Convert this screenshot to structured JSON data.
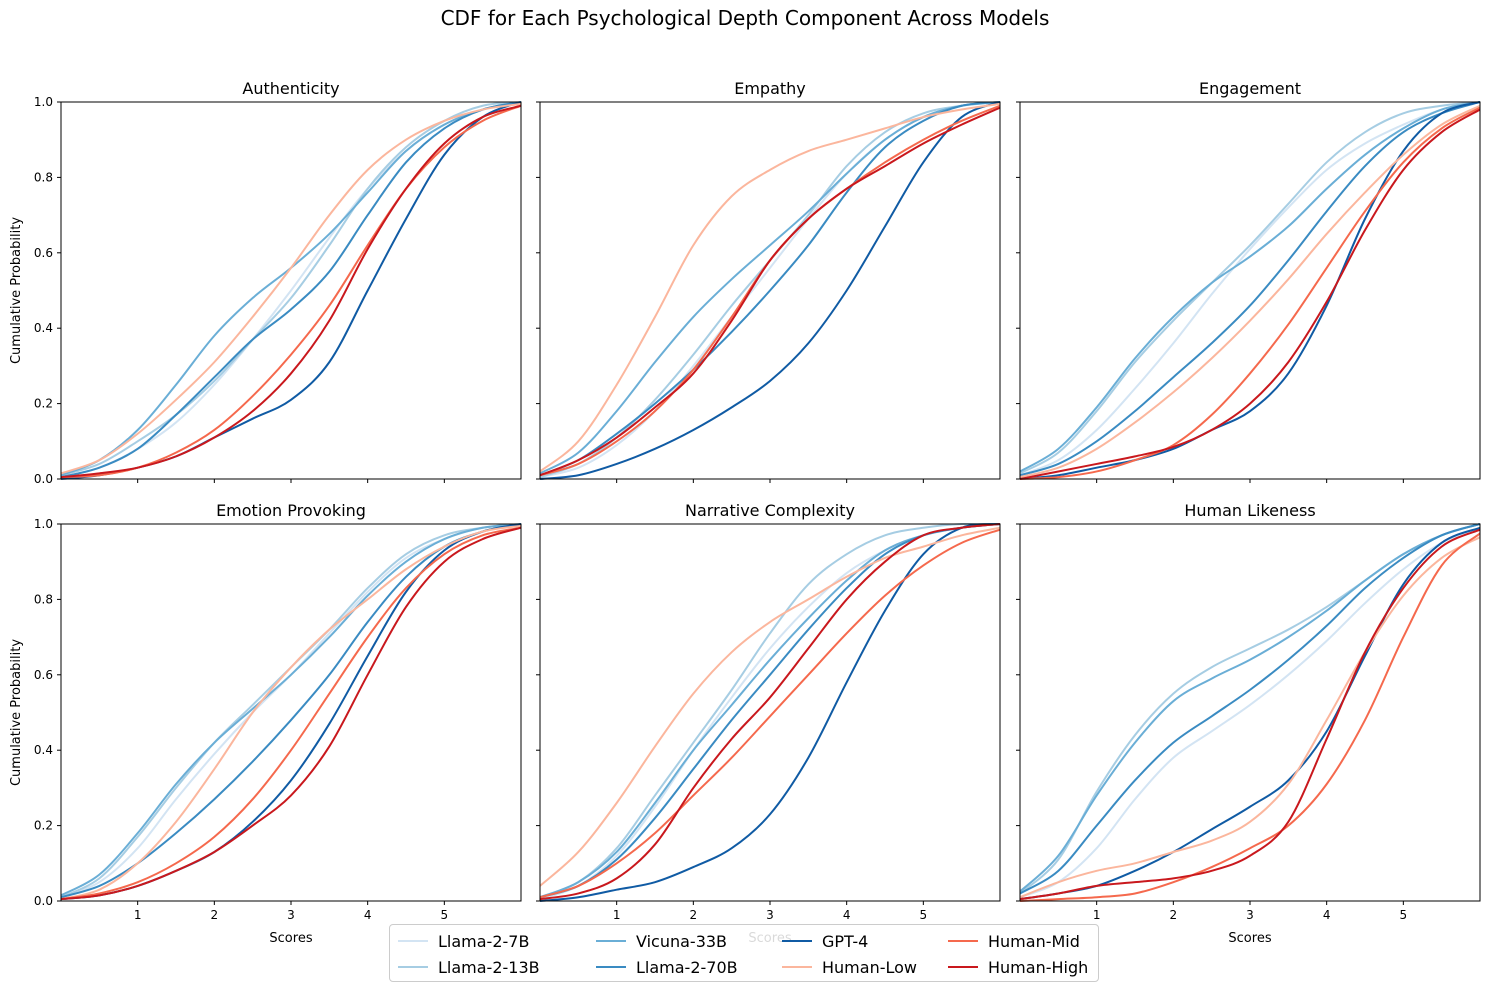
{
  "figure": {
    "title": "CDF for Each Psychological Depth Component Across Models"
  },
  "legend": [
    {
      "name": "Llama-2-7B",
      "color": "#d3e4f3"
    },
    {
      "name": "Llama-2-13B",
      "color": "#a6cde3"
    },
    {
      "name": "Vicuna-33B",
      "color": "#6aaed6"
    },
    {
      "name": "Llama-2-70B",
      "color": "#3a8bc2"
    },
    {
      "name": "GPT-4",
      "color": "#105ba4"
    },
    {
      "name": "Human-Low",
      "color": "#fbb69d"
    },
    {
      "name": "Human-Mid",
      "color": "#f5694d"
    },
    {
      "name": "Human-High",
      "color": "#c9181d"
    }
  ],
  "chart_data": [
    {
      "type": "line",
      "title": "Authenticity",
      "xlabel": "",
      "ylabel": "Cumulative Probability",
      "xlim": [
        0,
        6
      ],
      "ylim": [
        0,
        1
      ],
      "xticks": [
        1,
        2,
        3,
        4,
        5
      ],
      "yticks": [
        0.0,
        0.2,
        0.4,
        0.6,
        0.8,
        1.0
      ],
      "x": [
        0,
        0.5,
        1,
        1.5,
        2,
        2.5,
        3,
        3.5,
        4,
        4.5,
        5,
        5.5,
        6
      ],
      "series": [
        {
          "name": "Llama-2-7B",
          "values": [
            0.005,
            0.03,
            0.08,
            0.15,
            0.25,
            0.37,
            0.5,
            0.64,
            0.77,
            0.87,
            0.94,
            0.98,
            1.0
          ]
        },
        {
          "name": "Llama-2-13B",
          "values": [
            0.01,
            0.04,
            0.1,
            0.17,
            0.26,
            0.37,
            0.48,
            0.62,
            0.77,
            0.88,
            0.95,
            0.99,
            1.0
          ]
        },
        {
          "name": "Vicuna-33B",
          "values": [
            0.01,
            0.05,
            0.13,
            0.25,
            0.38,
            0.48,
            0.56,
            0.65,
            0.76,
            0.87,
            0.94,
            0.98,
            1.0
          ]
        },
        {
          "name": "Llama-2-70B",
          "values": [
            0.005,
            0.03,
            0.08,
            0.17,
            0.27,
            0.37,
            0.45,
            0.55,
            0.7,
            0.84,
            0.93,
            0.98,
            1.0
          ]
        },
        {
          "name": "GPT-4",
          "values": [
            0.0,
            0.01,
            0.03,
            0.06,
            0.11,
            0.16,
            0.21,
            0.31,
            0.5,
            0.69,
            0.86,
            0.96,
            1.0
          ]
        },
        {
          "name": "Human-Low",
          "values": [
            0.015,
            0.05,
            0.12,
            0.21,
            0.31,
            0.43,
            0.56,
            0.7,
            0.82,
            0.9,
            0.95,
            0.98,
            0.995
          ]
        },
        {
          "name": "Human-Mid",
          "values": [
            0.005,
            0.01,
            0.03,
            0.07,
            0.13,
            0.22,
            0.33,
            0.46,
            0.62,
            0.77,
            0.88,
            0.95,
            0.99
          ]
        },
        {
          "name": "Human-High",
          "values": [
            0.005,
            0.015,
            0.03,
            0.06,
            0.11,
            0.18,
            0.28,
            0.42,
            0.61,
            0.77,
            0.89,
            0.96,
            0.99
          ]
        }
      ]
    },
    {
      "type": "line",
      "title": "Empathy",
      "xlabel": "",
      "ylabel": "",
      "xlim": [
        0,
        6
      ],
      "ylim": [
        0,
        1
      ],
      "xticks": [
        1,
        2,
        3,
        4,
        5
      ],
      "yticks": [
        0.0,
        0.2,
        0.4,
        0.6,
        0.8,
        1.0
      ],
      "x": [
        0,
        0.5,
        1,
        1.5,
        2,
        2.5,
        3,
        3.5,
        4,
        4.5,
        5,
        5.5,
        6
      ],
      "series": [
        {
          "name": "Llama-2-7B",
          "values": [
            0.005,
            0.03,
            0.09,
            0.18,
            0.3,
            0.43,
            0.56,
            0.69,
            0.81,
            0.9,
            0.96,
            0.99,
            1.0
          ]
        },
        {
          "name": "Llama-2-13B",
          "values": [
            0.005,
            0.04,
            0.11,
            0.21,
            0.33,
            0.46,
            0.58,
            0.7,
            0.83,
            0.92,
            0.97,
            0.99,
            1.0
          ]
        },
        {
          "name": "Vicuna-33B",
          "values": [
            0.015,
            0.07,
            0.18,
            0.31,
            0.43,
            0.53,
            0.62,
            0.71,
            0.81,
            0.9,
            0.96,
            0.99,
            1.0
          ]
        },
        {
          "name": "Llama-2-70B",
          "values": [
            0.01,
            0.05,
            0.12,
            0.2,
            0.29,
            0.39,
            0.5,
            0.62,
            0.76,
            0.88,
            0.95,
            0.99,
            1.0
          ]
        },
        {
          "name": "GPT-4",
          "values": [
            0.0,
            0.01,
            0.04,
            0.08,
            0.13,
            0.19,
            0.26,
            0.36,
            0.5,
            0.67,
            0.84,
            0.96,
            1.0
          ]
        },
        {
          "name": "Human-Low",
          "values": [
            0.02,
            0.1,
            0.25,
            0.43,
            0.62,
            0.75,
            0.82,
            0.87,
            0.9,
            0.93,
            0.96,
            0.98,
            0.995
          ]
        },
        {
          "name": "Human-Mid",
          "values": [
            0.01,
            0.04,
            0.1,
            0.18,
            0.29,
            0.43,
            0.58,
            0.69,
            0.77,
            0.84,
            0.9,
            0.95,
            0.99
          ]
        },
        {
          "name": "Human-High",
          "values": [
            0.01,
            0.05,
            0.11,
            0.19,
            0.28,
            0.42,
            0.58,
            0.69,
            0.77,
            0.83,
            0.89,
            0.94,
            0.985
          ]
        }
      ]
    },
    {
      "type": "line",
      "title": "Engagement",
      "xlabel": "",
      "ylabel": "",
      "xlim": [
        0,
        6
      ],
      "ylim": [
        0,
        1
      ],
      "xticks": [
        1,
        2,
        3,
        4,
        5
      ],
      "yticks": [
        0.0,
        0.2,
        0.4,
        0.6,
        0.8,
        1.0
      ],
      "x": [
        0,
        0.5,
        1,
        1.5,
        2,
        2.5,
        3,
        3.5,
        4,
        4.5,
        5,
        5.5,
        6
      ],
      "series": [
        {
          "name": "Llama-2-7B",
          "values": [
            0.01,
            0.05,
            0.13,
            0.24,
            0.36,
            0.49,
            0.61,
            0.72,
            0.82,
            0.89,
            0.94,
            0.98,
            1.0
          ]
        },
        {
          "name": "Llama-2-13B",
          "values": [
            0.015,
            0.07,
            0.18,
            0.31,
            0.42,
            0.52,
            0.62,
            0.73,
            0.84,
            0.92,
            0.97,
            0.99,
            1.0
          ]
        },
        {
          "name": "Vicuna-33B",
          "values": [
            0.02,
            0.08,
            0.19,
            0.32,
            0.43,
            0.52,
            0.59,
            0.67,
            0.77,
            0.86,
            0.93,
            0.98,
            1.0
          ]
        },
        {
          "name": "Llama-2-70B",
          "values": [
            0.01,
            0.04,
            0.1,
            0.18,
            0.27,
            0.36,
            0.46,
            0.58,
            0.71,
            0.83,
            0.92,
            0.97,
            1.0
          ]
        },
        {
          "name": "GPT-4",
          "values": [
            0.0,
            0.01,
            0.03,
            0.05,
            0.08,
            0.13,
            0.18,
            0.28,
            0.46,
            0.69,
            0.87,
            0.97,
            1.0
          ]
        },
        {
          "name": "Human-Low",
          "values": [
            0.005,
            0.03,
            0.08,
            0.15,
            0.23,
            0.32,
            0.42,
            0.53,
            0.65,
            0.76,
            0.86,
            0.94,
            0.99
          ]
        },
        {
          "name": "Human-Mid",
          "values": [
            0.0,
            0.005,
            0.02,
            0.05,
            0.09,
            0.17,
            0.28,
            0.41,
            0.56,
            0.71,
            0.84,
            0.93,
            0.985
          ]
        },
        {
          "name": "Human-High",
          "values": [
            0.0,
            0.02,
            0.04,
            0.06,
            0.085,
            0.13,
            0.2,
            0.31,
            0.47,
            0.66,
            0.82,
            0.92,
            0.98
          ]
        }
      ]
    },
    {
      "type": "line",
      "title": "Emotion Provoking",
      "xlabel": "Scores",
      "ylabel": "Cumulative Probability",
      "xlim": [
        0,
        6
      ],
      "ylim": [
        0,
        1
      ],
      "xticks": [
        1,
        2,
        3,
        4,
        5
      ],
      "yticks": [
        0.0,
        0.2,
        0.4,
        0.6,
        0.8,
        1.0
      ],
      "x": [
        0,
        0.5,
        1,
        1.5,
        2,
        2.5,
        3,
        3.5,
        4,
        4.5,
        5,
        5.5,
        6
      ],
      "series": [
        {
          "name": "Llama-2-7B",
          "values": [
            0.01,
            0.05,
            0.14,
            0.27,
            0.39,
            0.5,
            0.6,
            0.71,
            0.82,
            0.91,
            0.96,
            0.99,
            1.0
          ]
        },
        {
          "name": "Llama-2-13B",
          "values": [
            0.01,
            0.06,
            0.17,
            0.3,
            0.42,
            0.52,
            0.62,
            0.72,
            0.83,
            0.92,
            0.97,
            0.99,
            1.0
          ]
        },
        {
          "name": "Vicuna-33B",
          "values": [
            0.015,
            0.07,
            0.18,
            0.31,
            0.42,
            0.51,
            0.6,
            0.7,
            0.81,
            0.9,
            0.96,
            0.99,
            1.0
          ]
        },
        {
          "name": "Llama-2-70B",
          "values": [
            0.01,
            0.04,
            0.1,
            0.18,
            0.27,
            0.37,
            0.48,
            0.6,
            0.74,
            0.86,
            0.94,
            0.98,
            1.0
          ]
        },
        {
          "name": "GPT-4",
          "values": [
            0.005,
            0.015,
            0.04,
            0.08,
            0.13,
            0.21,
            0.32,
            0.47,
            0.65,
            0.82,
            0.93,
            0.98,
            1.0
          ]
        },
        {
          "name": "Human-Low",
          "values": [
            0.005,
            0.03,
            0.1,
            0.21,
            0.35,
            0.5,
            0.62,
            0.72,
            0.8,
            0.88,
            0.94,
            0.98,
            0.995
          ]
        },
        {
          "name": "Human-Mid",
          "values": [
            0.005,
            0.02,
            0.05,
            0.1,
            0.17,
            0.27,
            0.4,
            0.55,
            0.7,
            0.83,
            0.92,
            0.97,
            0.99
          ]
        },
        {
          "name": "Human-High",
          "values": [
            0.005,
            0.015,
            0.04,
            0.08,
            0.13,
            0.2,
            0.28,
            0.41,
            0.6,
            0.78,
            0.9,
            0.96,
            0.99
          ]
        }
      ]
    },
    {
      "type": "line",
      "title": "Narrative Complexity",
      "xlabel": "Scores",
      "ylabel": "",
      "xlim": [
        0,
        6
      ],
      "ylim": [
        0,
        1
      ],
      "xticks": [
        1,
        2,
        3,
        4,
        5
      ],
      "yticks": [
        0.0,
        0.2,
        0.4,
        0.6,
        0.8,
        1.0
      ],
      "x": [
        0,
        0.5,
        1,
        1.5,
        2,
        2.5,
        3,
        3.5,
        4,
        4.5,
        5,
        5.5,
        6
      ],
      "series": [
        {
          "name": "Llama-2-7B",
          "values": [
            0.005,
            0.04,
            0.12,
            0.25,
            0.4,
            0.54,
            0.67,
            0.78,
            0.87,
            0.93,
            0.97,
            0.99,
            1.0
          ]
        },
        {
          "name": "Llama-2-13B",
          "values": [
            0.01,
            0.05,
            0.14,
            0.28,
            0.42,
            0.56,
            0.71,
            0.84,
            0.92,
            0.97,
            0.99,
            1.0,
            1.0
          ]
        },
        {
          "name": "Vicuna-33B",
          "values": [
            0.01,
            0.05,
            0.13,
            0.26,
            0.4,
            0.52,
            0.64,
            0.75,
            0.85,
            0.93,
            0.97,
            0.99,
            1.0
          ]
        },
        {
          "name": "Llama-2-70B",
          "values": [
            0.01,
            0.04,
            0.11,
            0.22,
            0.35,
            0.48,
            0.6,
            0.72,
            0.83,
            0.92,
            0.97,
            0.99,
            1.0
          ]
        },
        {
          "name": "GPT-4",
          "values": [
            0.0,
            0.01,
            0.03,
            0.05,
            0.09,
            0.14,
            0.23,
            0.38,
            0.58,
            0.77,
            0.92,
            0.99,
            1.0
          ]
        },
        {
          "name": "Human-Low",
          "values": [
            0.04,
            0.13,
            0.26,
            0.41,
            0.55,
            0.66,
            0.74,
            0.8,
            0.86,
            0.91,
            0.94,
            0.97,
            0.99
          ]
        },
        {
          "name": "Human-Mid",
          "values": [
            0.01,
            0.04,
            0.1,
            0.18,
            0.28,
            0.38,
            0.49,
            0.6,
            0.71,
            0.81,
            0.89,
            0.95,
            0.985
          ]
        },
        {
          "name": "Human-High",
          "values": [
            0.005,
            0.02,
            0.06,
            0.15,
            0.3,
            0.43,
            0.54,
            0.67,
            0.8,
            0.9,
            0.97,
            0.99,
            1.0
          ]
        }
      ]
    },
    {
      "type": "line",
      "title": "Human Likeness",
      "xlabel": "Scores",
      "ylabel": "",
      "xlim": [
        0,
        6
      ],
      "ylim": [
        0,
        1
      ],
      "xticks": [
        1,
        2,
        3,
        4,
        5
      ],
      "yticks": [
        0.0,
        0.2,
        0.4,
        0.6,
        0.8,
        1.0
      ],
      "x": [
        0,
        0.5,
        1,
        1.5,
        2,
        2.5,
        3,
        3.5,
        4,
        4.5,
        5,
        5.5,
        6
      ],
      "series": [
        {
          "name": "Llama-2-7B",
          "values": [
            0.01,
            0.05,
            0.14,
            0.27,
            0.38,
            0.45,
            0.52,
            0.6,
            0.69,
            0.79,
            0.88,
            0.95,
            0.99
          ]
        },
        {
          "name": "Llama-2-13B",
          "values": [
            0.02,
            0.11,
            0.29,
            0.44,
            0.55,
            0.62,
            0.67,
            0.72,
            0.78,
            0.85,
            0.92,
            0.97,
            1.0
          ]
        },
        {
          "name": "Vicuna-33B",
          "values": [
            0.025,
            0.12,
            0.28,
            0.42,
            0.53,
            0.59,
            0.64,
            0.7,
            0.77,
            0.85,
            0.92,
            0.97,
            1.0
          ]
        },
        {
          "name": "Llama-2-70B",
          "values": [
            0.02,
            0.08,
            0.2,
            0.32,
            0.42,
            0.49,
            0.56,
            0.64,
            0.73,
            0.83,
            0.91,
            0.97,
            1.0
          ]
        },
        {
          "name": "GPT-4",
          "values": [
            0.005,
            0.02,
            0.04,
            0.08,
            0.13,
            0.19,
            0.25,
            0.32,
            0.45,
            0.65,
            0.84,
            0.95,
            0.99
          ]
        },
        {
          "name": "Human-Low",
          "values": [
            0.01,
            0.05,
            0.08,
            0.1,
            0.13,
            0.16,
            0.21,
            0.31,
            0.48,
            0.66,
            0.81,
            0.91,
            0.965
          ]
        },
        {
          "name": "Human-Mid",
          "values": [
            0.0,
            0.005,
            0.01,
            0.02,
            0.05,
            0.09,
            0.14,
            0.2,
            0.31,
            0.48,
            0.7,
            0.89,
            0.975
          ]
        },
        {
          "name": "Human-High",
          "values": [
            0.005,
            0.02,
            0.04,
            0.05,
            0.06,
            0.08,
            0.12,
            0.21,
            0.43,
            0.66,
            0.83,
            0.94,
            0.985
          ]
        }
      ]
    }
  ]
}
